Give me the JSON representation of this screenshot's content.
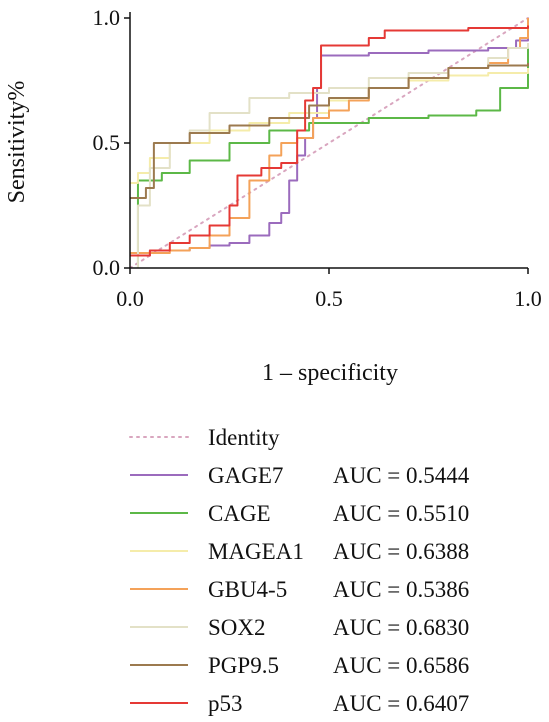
{
  "chart_data": {
    "type": "line",
    "xlabel": "1 – specificity",
    "ylabel": "Sensitivity%",
    "xlim": [
      0,
      1
    ],
    "ylim": [
      0,
      1
    ],
    "x_ticks": [
      "0.0",
      "0.5",
      "1.0"
    ],
    "y_ticks": [
      "0.0",
      "0.5",
      "1.0"
    ],
    "grid": false,
    "legend_position": "bottom",
    "identity": {
      "name": "Identity",
      "color": "#d9a6bf",
      "points": [
        [
          0,
          0
        ],
        [
          1,
          1
        ]
      ]
    },
    "series": [
      {
        "name": "GAGE7",
        "auc_text": "AUC = 0.5444",
        "color": "#9b6bbd",
        "points": [
          [
            0,
            0.05
          ],
          [
            0.05,
            0.07
          ],
          [
            0.15,
            0.08
          ],
          [
            0.2,
            0.09
          ],
          [
            0.25,
            0.1
          ],
          [
            0.3,
            0.13
          ],
          [
            0.35,
            0.18
          ],
          [
            0.38,
            0.22
          ],
          [
            0.4,
            0.35
          ],
          [
            0.42,
            0.45
          ],
          [
            0.44,
            0.52
          ],
          [
            0.46,
            0.6
          ],
          [
            0.47,
            0.72
          ],
          [
            0.48,
            0.85
          ],
          [
            0.6,
            0.86
          ],
          [
            0.75,
            0.87
          ],
          [
            0.9,
            0.88
          ],
          [
            0.97,
            0.91
          ],
          [
            1.0,
            0.92
          ]
        ]
      },
      {
        "name": "CAGE",
        "auc_text": "AUC = 0.5510",
        "color": "#5cb847",
        "points": [
          [
            0.02,
            0.0
          ],
          [
            0.02,
            0.35
          ],
          [
            0.08,
            0.38
          ],
          [
            0.15,
            0.43
          ],
          [
            0.25,
            0.5
          ],
          [
            0.35,
            0.55
          ],
          [
            0.45,
            0.58
          ],
          [
            0.6,
            0.6
          ],
          [
            0.75,
            0.61
          ],
          [
            0.87,
            0.63
          ],
          [
            0.93,
            0.72
          ],
          [
            1.0,
            0.82
          ],
          [
            1.0,
            0.88
          ]
        ]
      },
      {
        "name": "MAGEA1",
        "auc_text": "AUC = 0.6388",
        "color": "#f5ecaa",
        "points": [
          [
            0,
            0.34
          ],
          [
            0.02,
            0.38
          ],
          [
            0.05,
            0.44
          ],
          [
            0.1,
            0.5
          ],
          [
            0.2,
            0.55
          ],
          [
            0.3,
            0.58
          ],
          [
            0.4,
            0.62
          ],
          [
            0.5,
            0.67
          ],
          [
            0.6,
            0.72
          ],
          [
            0.7,
            0.75
          ],
          [
            0.8,
            0.77
          ],
          [
            0.9,
            0.78
          ],
          [
            1.0,
            0.8
          ]
        ]
      },
      {
        "name": "GBU4-5",
        "auc_text": "AUC = 0.5386",
        "color": "#f4a259",
        "points": [
          [
            0,
            0.06
          ],
          [
            0.1,
            0.07
          ],
          [
            0.15,
            0.08
          ],
          [
            0.2,
            0.13
          ],
          [
            0.25,
            0.2
          ],
          [
            0.3,
            0.35
          ],
          [
            0.35,
            0.45
          ],
          [
            0.38,
            0.5
          ],
          [
            0.42,
            0.52
          ],
          [
            0.46,
            0.6
          ],
          [
            0.5,
            0.63
          ],
          [
            0.55,
            0.67
          ],
          [
            0.6,
            0.72
          ],
          [
            0.7,
            0.76
          ],
          [
            0.8,
            0.8
          ],
          [
            0.9,
            0.82
          ],
          [
            0.95,
            0.88
          ],
          [
            0.98,
            0.92
          ],
          [
            1.0,
            1.0
          ]
        ]
      },
      {
        "name": "SOX2",
        "auc_text": "AUC = 0.6830",
        "color": "#e3e1c7",
        "points": [
          [
            0.02,
            0.0
          ],
          [
            0.02,
            0.25
          ],
          [
            0.05,
            0.4
          ],
          [
            0.1,
            0.5
          ],
          [
            0.15,
            0.55
          ],
          [
            0.2,
            0.62
          ],
          [
            0.3,
            0.68
          ],
          [
            0.4,
            0.7
          ],
          [
            0.5,
            0.72
          ],
          [
            0.6,
            0.76
          ],
          [
            0.7,
            0.78
          ],
          [
            0.8,
            0.8
          ],
          [
            0.9,
            0.84
          ],
          [
            0.95,
            0.88
          ],
          [
            1.0,
            0.9
          ]
        ]
      },
      {
        "name": "PGP9.5",
        "auc_text": "AUC = 0.6586",
        "color": "#9c7a4f",
        "points": [
          [
            0,
            0.28
          ],
          [
            0.04,
            0.32
          ],
          [
            0.06,
            0.36
          ],
          [
            0.06,
            0.5
          ],
          [
            0.15,
            0.54
          ],
          [
            0.25,
            0.57
          ],
          [
            0.35,
            0.6
          ],
          [
            0.45,
            0.65
          ],
          [
            0.5,
            0.68
          ],
          [
            0.6,
            0.72
          ],
          [
            0.7,
            0.76
          ],
          [
            0.8,
            0.8
          ],
          [
            0.9,
            0.81
          ],
          [
            1.0,
            0.82
          ]
        ]
      },
      {
        "name": "p53",
        "auc_text": "AUC = 0.6407",
        "color": "#e53935",
        "points": [
          [
            0,
            0.05
          ],
          [
            0.05,
            0.07
          ],
          [
            0.1,
            0.1
          ],
          [
            0.15,
            0.13
          ],
          [
            0.2,
            0.17
          ],
          [
            0.25,
            0.25
          ],
          [
            0.27,
            0.37
          ],
          [
            0.33,
            0.4
          ],
          [
            0.38,
            0.42
          ],
          [
            0.42,
            0.55
          ],
          [
            0.44,
            0.67
          ],
          [
            0.46,
            0.72
          ],
          [
            0.48,
            0.89
          ],
          [
            0.6,
            0.92
          ],
          [
            0.64,
            0.95
          ],
          [
            0.85,
            0.96
          ],
          [
            1.0,
            0.97
          ]
        ]
      }
    ]
  }
}
